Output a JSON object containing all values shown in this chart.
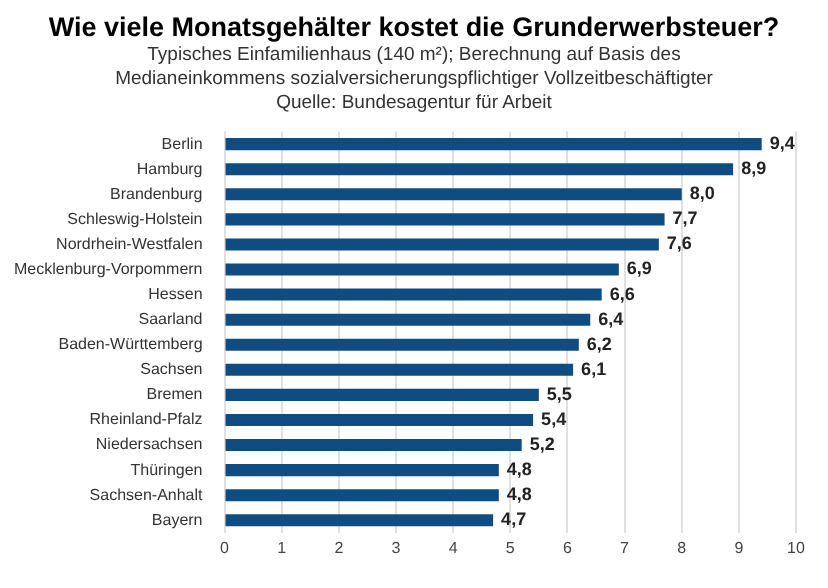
{
  "chart_data": {
    "type": "bar",
    "orientation": "horizontal",
    "title": "Wie viele Monatsgehälter kostet die Grunderwerbsteuer?",
    "subtitle": "Typisches Einfamilienhaus (140 m²); Berechnung auf Basis des Medianeinkommens sozialversicherungspflichtiger Vollzeitbeschäftigter",
    "annotations": [
      "Quelle: Bundesagentur für Arbeit"
    ],
    "categories": [
      "Berlin",
      "Hamburg",
      "Brandenburg",
      "Schleswig-Holstein",
      "Nordrhein-Westfalen",
      "Mecklenburg-Vorpommern",
      "Hessen",
      "Saarland",
      "Baden-Württemberg",
      "Sachsen",
      "Bremen",
      "Rheinland-Pfalz",
      "Niedersachsen",
      "Thüringen",
      "Sachsen-Anhalt",
      "Bayern"
    ],
    "values": [
      9.4,
      8.9,
      8.0,
      7.7,
      7.6,
      6.9,
      6.6,
      6.4,
      6.2,
      6.1,
      5.5,
      5.4,
      5.2,
      4.8,
      4.8,
      4.7
    ],
    "value_labels": [
      "9,4",
      "8,9",
      "8,0",
      "7,7",
      "7,6",
      "6,9",
      "6,6",
      "6,4",
      "6,2",
      "6,1",
      "5,5",
      "5,4",
      "5,2",
      "4,8",
      "4,8",
      "4,7"
    ],
    "color": "#0f4c81",
    "xlim": [
      0,
      10
    ],
    "xticks": [
      0,
      1,
      2,
      3,
      4,
      5,
      6,
      7,
      8,
      9,
      10
    ],
    "grid": "x",
    "legend": false
  }
}
